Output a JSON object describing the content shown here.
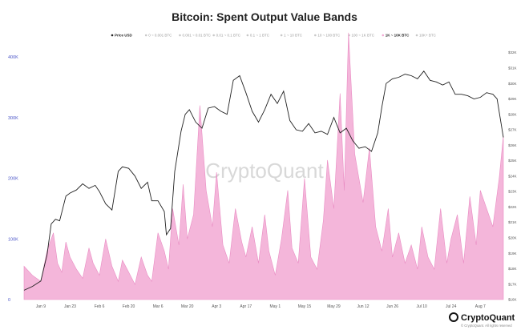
{
  "chart_data": {
    "type": "area",
    "title": "Bitcoin: Spent Output Value Bands",
    "legend": {
      "placement": "top",
      "items": [
        {
          "label": "Price USD",
          "active": true,
          "color": "#222222"
        },
        {
          "label": "0 ~ 0.001 BTC",
          "active": false,
          "color": "#c8c8c8"
        },
        {
          "label": "0.001 ~ 0.01 BTC",
          "active": false,
          "color": "#c8c8c8"
        },
        {
          "label": "0.01 ~ 0.1 BTC",
          "active": false,
          "color": "#c8c8c8"
        },
        {
          "label": "0.1 ~ 1 BTC",
          "active": false,
          "color": "#c8c8c8"
        },
        {
          "label": "1 ~ 10 BTC",
          "active": false,
          "color": "#c8c8c8"
        },
        {
          "label": "10 ~ 100 BTC",
          "active": false,
          "color": "#c8c8c8"
        },
        {
          "label": "100 ~ 1K BTC",
          "active": false,
          "color": "#c8c8c8"
        },
        {
          "label": "1K ~ 10K BTC",
          "active": true,
          "color": "#f2a9d4"
        },
        {
          "label": "10K+ BTC",
          "active": false,
          "color": "#c8c8c8"
        }
      ]
    },
    "y_left": {
      "ticks": [
        0,
        100000,
        200000,
        300000,
        400000
      ],
      "tick_labels": [
        "0",
        "100K",
        "200K",
        "300K",
        "400K"
      ],
      "range": [
        0,
        420000
      ]
    },
    "y_right": {
      "ticks": [
        16000,
        17000,
        18000,
        19000,
        20000,
        21000,
        22000,
        23000,
        24000,
        25000,
        26000,
        27000,
        28000,
        29000,
        30000,
        31000,
        32000
      ],
      "tick_labels": [
        "$16K",
        "$17K",
        "$18K",
        "$19K",
        "$20K",
        "$21K",
        "$22K",
        "$23K",
        "$24K",
        "$25K",
        "$26K",
        "$27K",
        "$28K",
        "$29K",
        "$30K",
        "$31K",
        "$32K"
      ],
      "range": [
        16000,
        32500
      ]
    },
    "x_axis": {
      "range": [
        "2023-01-01",
        "2023-08-18"
      ],
      "ticks": [
        "2023-01-09",
        "2023-01-23",
        "2023-02-06",
        "2023-02-20",
        "2023-03-06",
        "2023-03-20",
        "2023-04-03",
        "2023-04-17",
        "2023-05-01",
        "2023-05-15",
        "2023-05-29",
        "2023-06-12",
        "2023-06-26",
        "2023-07-10",
        "2023-07-24",
        "2023-08-07"
      ],
      "tick_labels": [
        "Jan 9",
        "Jan 23",
        "Feb 6",
        "Feb 20",
        "Mar 6",
        "Mar 20",
        "Apr 3",
        "Apr 17",
        "May 1",
        "May 15",
        "May 29",
        "Jun 12",
        "Jun 26",
        "Jul 10",
        "Jul 24",
        "Aug 7"
      ]
    },
    "series": [
      {
        "name": "1K ~ 10K BTC",
        "type": "area",
        "axis": "left",
        "color": "#f2a9d4",
        "x": [
          "2023-01-01",
          "2023-01-05",
          "2023-01-09",
          "2023-01-12",
          "2023-01-15",
          "2023-01-17",
          "2023-01-19",
          "2023-01-21",
          "2023-01-23",
          "2023-01-26",
          "2023-01-29",
          "2023-02-01",
          "2023-02-03",
          "2023-02-06",
          "2023-02-09",
          "2023-02-12",
          "2023-02-15",
          "2023-02-17",
          "2023-02-20",
          "2023-02-23",
          "2023-02-26",
          "2023-03-01",
          "2023-03-03",
          "2023-03-06",
          "2023-03-09",
          "2023-03-11",
          "2023-03-13",
          "2023-03-16",
          "2023-03-18",
          "2023-03-20",
          "2023-03-23",
          "2023-03-26",
          "2023-03-29",
          "2023-04-01",
          "2023-04-03",
          "2023-04-06",
          "2023-04-09",
          "2023-04-12",
          "2023-04-15",
          "2023-04-17",
          "2023-04-20",
          "2023-04-23",
          "2023-04-26",
          "2023-04-28",
          "2023-05-01",
          "2023-05-04",
          "2023-05-07",
          "2023-05-09",
          "2023-05-12",
          "2023-05-15",
          "2023-05-18",
          "2023-05-21",
          "2023-05-24",
          "2023-05-26",
          "2023-05-29",
          "2023-06-01",
          "2023-06-03",
          "2023-06-05",
          "2023-06-08",
          "2023-06-10",
          "2023-06-12",
          "2023-06-15",
          "2023-06-18",
          "2023-06-21",
          "2023-06-24",
          "2023-06-26",
          "2023-06-29",
          "2023-07-02",
          "2023-07-05",
          "2023-07-08",
          "2023-07-10",
          "2023-07-13",
          "2023-07-16",
          "2023-07-19",
          "2023-07-22",
          "2023-07-24",
          "2023-07-27",
          "2023-07-30",
          "2023-08-02",
          "2023-08-05",
          "2023-08-07",
          "2023-08-10",
          "2023-08-13",
          "2023-08-16",
          "2023-08-18"
        ],
        "values": [
          55000,
          40000,
          30000,
          80000,
          110000,
          60000,
          45000,
          95000,
          70000,
          50000,
          35000,
          85000,
          60000,
          40000,
          100000,
          55000,
          30000,
          65000,
          45000,
          25000,
          70000,
          40000,
          30000,
          110000,
          80000,
          50000,
          150000,
          90000,
          190000,
          100000,
          140000,
          320000,
          180000,
          120000,
          210000,
          90000,
          60000,
          150000,
          95000,
          70000,
          120000,
          60000,
          140000,
          80000,
          40000,
          100000,
          180000,
          85000,
          60000,
          200000,
          70000,
          50000,
          130000,
          230000,
          150000,
          340000,
          180000,
          440000,
          240000,
          200000,
          160000,
          250000,
          120000,
          80000,
          150000,
          70000,
          110000,
          60000,
          90000,
          50000,
          120000,
          70000,
          50000,
          150000,
          60000,
          100000,
          140000,
          60000,
          170000,
          90000,
          180000,
          150000,
          120000,
          200000,
          270000
        ]
      },
      {
        "name": "Price USD",
        "type": "line",
        "axis": "right",
        "color": "#222222",
        "x": [
          "2023-01-01",
          "2023-01-05",
          "2023-01-09",
          "2023-01-12",
          "2023-01-14",
          "2023-01-16",
          "2023-01-18",
          "2023-01-21",
          "2023-01-23",
          "2023-01-26",
          "2023-01-29",
          "2023-02-01",
          "2023-02-04",
          "2023-02-06",
          "2023-02-09",
          "2023-02-12",
          "2023-02-15",
          "2023-02-17",
          "2023-02-20",
          "2023-02-23",
          "2023-02-26",
          "2023-03-01",
          "2023-03-03",
          "2023-03-06",
          "2023-03-09",
          "2023-03-10",
          "2023-03-12",
          "2023-03-14",
          "2023-03-17",
          "2023-03-19",
          "2023-03-21",
          "2023-03-24",
          "2023-03-27",
          "2023-03-30",
          "2023-04-02",
          "2023-04-05",
          "2023-04-08",
          "2023-04-11",
          "2023-04-14",
          "2023-04-17",
          "2023-04-20",
          "2023-04-23",
          "2023-04-26",
          "2023-04-29",
          "2023-05-02",
          "2023-05-05",
          "2023-05-08",
          "2023-05-11",
          "2023-05-14",
          "2023-05-17",
          "2023-05-20",
          "2023-05-23",
          "2023-05-26",
          "2023-05-29",
          "2023-06-01",
          "2023-06-04",
          "2023-06-07",
          "2023-06-10",
          "2023-06-13",
          "2023-06-16",
          "2023-06-19",
          "2023-06-21",
          "2023-06-23",
          "2023-06-26",
          "2023-06-29",
          "2023-07-02",
          "2023-07-05",
          "2023-07-08",
          "2023-07-11",
          "2023-07-14",
          "2023-07-17",
          "2023-07-20",
          "2023-07-23",
          "2023-07-26",
          "2023-07-29",
          "2023-08-01",
          "2023-08-04",
          "2023-08-07",
          "2023-08-10",
          "2023-08-13",
          "2023-08-15",
          "2023-08-18"
        ],
        "values": [
          16600,
          16850,
          17200,
          18900,
          20900,
          21200,
          21100,
          22700,
          22900,
          23100,
          23500,
          23200,
          23400,
          23000,
          22200,
          21800,
          24300,
          24600,
          24500,
          24000,
          23200,
          23600,
          22400,
          22400,
          21700,
          20200,
          20600,
          24300,
          26900,
          28000,
          28300,
          27500,
          27100,
          28400,
          28500,
          28200,
          28000,
          30200,
          30500,
          29400,
          28200,
          27500,
          28300,
          29300,
          28700,
          29500,
          27600,
          27000,
          26900,
          27400,
          26800,
          26900,
          26700,
          27800,
          26800,
          27100,
          26300,
          25800,
          25900,
          25600,
          26800,
          28500,
          30000,
          30300,
          30400,
          30600,
          30500,
          30300,
          30800,
          30200,
          30100,
          29900,
          30100,
          29300,
          29300,
          29200,
          29000,
          29100,
          29400,
          29300,
          29000,
          26500
        ]
      }
    ],
    "watermark": "CryptoQuant",
    "brand": "CryptoQuant",
    "copyright": "© CryptoQuant. All rights reserved",
    "grid": false
  }
}
